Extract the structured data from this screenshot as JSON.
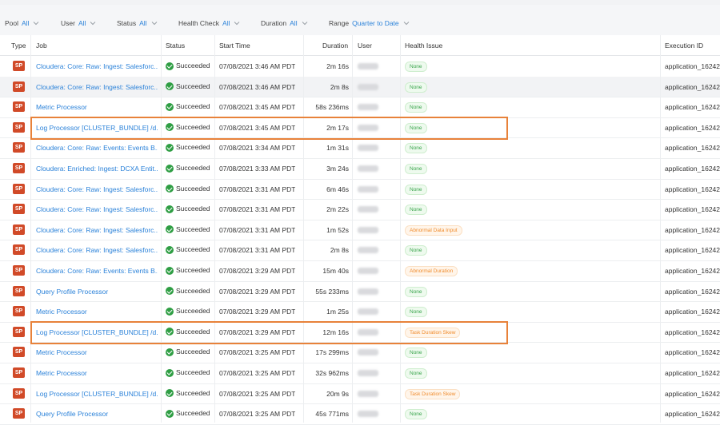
{
  "filters": [
    {
      "label": "Pool",
      "value": "All"
    },
    {
      "label": "User",
      "value": "All"
    },
    {
      "label": "Status",
      "value": "All"
    },
    {
      "label": "Health Check",
      "value": "All"
    },
    {
      "label": "Duration",
      "value": "All"
    },
    {
      "label": "Range",
      "value": "Quarter to Date"
    }
  ],
  "columns": [
    "Type",
    "Job",
    "Status",
    "Start Time",
    "Duration",
    "User",
    "Health Issue",
    "Execution ID"
  ],
  "rows": [
    {
      "type": "SP",
      "job": "Cloudera: Core: Raw: Ingest: Salesforc...",
      "status": "Succeeded",
      "start": "07/08/2021 3:46 AM PDT",
      "duration": "2m 16s",
      "health": "None",
      "health_kind": "ok",
      "exec": "application_16242"
    },
    {
      "type": "SP",
      "job": "Cloudera: Core: Raw: Ingest: Salesforc...",
      "status": "Succeeded",
      "start": "07/08/2021 3:46 AM PDT",
      "duration": "2m 8s",
      "health": "None",
      "health_kind": "ok",
      "exec": "application_16242"
    },
    {
      "type": "SP",
      "job": "Metric Processor",
      "status": "Succeeded",
      "start": "07/08/2021 3:45 AM PDT",
      "duration": "58s 236ms",
      "health": "None",
      "health_kind": "ok",
      "exec": "application_16242"
    },
    {
      "type": "SP",
      "job": "Log Processor [CLUSTER_BUNDLE] /d...",
      "status": "Succeeded",
      "start": "07/08/2021 3:45 AM PDT",
      "duration": "2m 17s",
      "health": "None",
      "health_kind": "ok",
      "exec": "application_16242"
    },
    {
      "type": "SP",
      "job": "Cloudera: Core: Raw: Events: Events B...",
      "status": "Succeeded",
      "start": "07/08/2021 3:34 AM PDT",
      "duration": "1m 31s",
      "health": "None",
      "health_kind": "ok",
      "exec": "application_16242"
    },
    {
      "type": "SP",
      "job": "Cloudera: Enriched: Ingest: DCXA Entit...",
      "status": "Succeeded",
      "start": "07/08/2021 3:33 AM PDT",
      "duration": "3m 24s",
      "health": "None",
      "health_kind": "ok",
      "exec": "application_16242"
    },
    {
      "type": "SP",
      "job": "Cloudera: Core: Raw: Ingest: Salesforc...",
      "status": "Succeeded",
      "start": "07/08/2021 3:31 AM PDT",
      "duration": "6m 46s",
      "health": "None",
      "health_kind": "ok",
      "exec": "application_16242"
    },
    {
      "type": "SP",
      "job": "Cloudera: Core: Raw: Ingest: Salesforc...",
      "status": "Succeeded",
      "start": "07/08/2021 3:31 AM PDT",
      "duration": "2m 22s",
      "health": "None",
      "health_kind": "ok",
      "exec": "application_16242"
    },
    {
      "type": "SP",
      "job": "Cloudera: Core: Raw: Ingest: Salesforc...",
      "status": "Succeeded",
      "start": "07/08/2021 3:31 AM PDT",
      "duration": "1m 52s",
      "health": "Abnormal Data Input",
      "health_kind": "warn",
      "exec": "application_16242"
    },
    {
      "type": "SP",
      "job": "Cloudera: Core: Raw: Ingest: Salesforc...",
      "status": "Succeeded",
      "start": "07/08/2021 3:31 AM PDT",
      "duration": "2m 8s",
      "health": "None",
      "health_kind": "ok",
      "exec": "application_16242"
    },
    {
      "type": "SP",
      "job": "Cloudera: Core: Raw: Events: Events B...",
      "status": "Succeeded",
      "start": "07/08/2021 3:29 AM PDT",
      "duration": "15m 40s",
      "health": "Abnormal Duration",
      "health_kind": "warn",
      "exec": "application_16242"
    },
    {
      "type": "SP",
      "job": "Query Profile Processor",
      "status": "Succeeded",
      "start": "07/08/2021 3:29 AM PDT",
      "duration": "55s 233ms",
      "health": "None",
      "health_kind": "ok",
      "exec": "application_16242"
    },
    {
      "type": "SP",
      "job": "Metric Processor",
      "status": "Succeeded",
      "start": "07/08/2021 3:29 AM PDT",
      "duration": "1m 25s",
      "health": "None",
      "health_kind": "ok",
      "exec": "application_16242"
    },
    {
      "type": "SP",
      "job": "Log Processor [CLUSTER_BUNDLE] /d...",
      "status": "Succeeded",
      "start": "07/08/2021 3:29 AM PDT",
      "duration": "12m 16s",
      "health": "Task Duration Skew",
      "health_kind": "warn",
      "exec": "application_16242"
    },
    {
      "type": "SP",
      "job": "Metric Processor",
      "status": "Succeeded",
      "start": "07/08/2021 3:25 AM PDT",
      "duration": "17s 299ms",
      "health": "None",
      "health_kind": "ok",
      "exec": "application_16242"
    },
    {
      "type": "SP",
      "job": "Metric Processor",
      "status": "Succeeded",
      "start": "07/08/2021 3:25 AM PDT",
      "duration": "32s 962ms",
      "health": "None",
      "health_kind": "ok",
      "exec": "application_16242"
    },
    {
      "type": "SP",
      "job": "Log Processor [CLUSTER_BUNDLE] /d...",
      "status": "Succeeded",
      "start": "07/08/2021 3:25 AM PDT",
      "duration": "20m 9s",
      "health": "Task Duration Skew",
      "health_kind": "warn",
      "exec": "application_16242"
    },
    {
      "type": "SP",
      "job": "Query Profile Processor",
      "status": "Succeeded",
      "start": "07/08/2021 3:25 AM PDT",
      "duration": "45s 771ms",
      "health": "None",
      "health_kind": "ok",
      "exec": "application_16242"
    }
  ],
  "colors": {
    "link": "#2b82d9",
    "sp_badge": "#d14a28",
    "success": "#2f9e44",
    "highlight": "#e8823a",
    "warn_text": "#f08c2e",
    "ok_text": "#37a34a"
  },
  "icons": {
    "filter_dropdown": "chevron-down-icon",
    "status": "check-circle-icon"
  }
}
